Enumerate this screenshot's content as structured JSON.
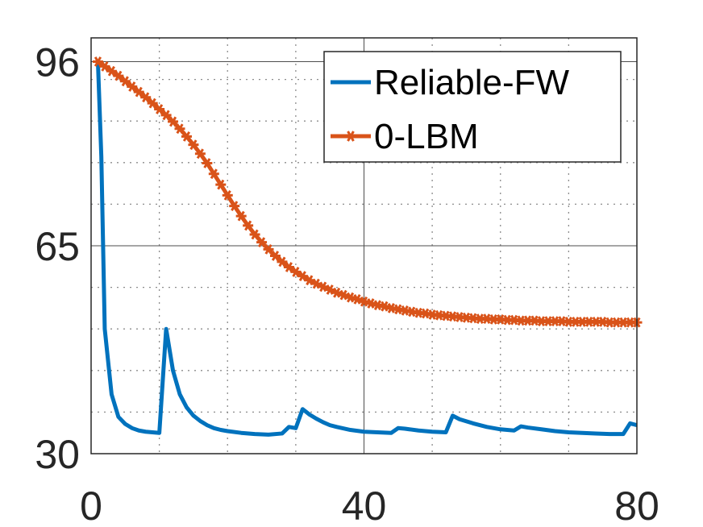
{
  "chart_data": {
    "type": "line",
    "title": "",
    "xlabel": "",
    "ylabel": "",
    "xlim": [
      0,
      80
    ],
    "ylim": [
      30,
      100
    ],
    "xticks": [
      {
        "value": 0,
        "label": "0"
      },
      {
        "value": 40,
        "label": "40"
      },
      {
        "value": 80,
        "label": "80"
      }
    ],
    "yticks": [
      {
        "value": 30,
        "label": "30"
      },
      {
        "value": 65,
        "label": "65"
      },
      {
        "value": 96,
        "label": "96"
      }
    ],
    "minor_grid_x": [
      10,
      20,
      30,
      50,
      60,
      70
    ],
    "minor_grid_y": [
      37,
      44,
      51,
      58,
      72,
      79,
      86,
      93
    ],
    "grid": true,
    "legend_position": "top-right",
    "series": [
      {
        "name": "Reliable-FW",
        "color": "#0072BD",
        "marker": "none",
        "x": [
          1,
          1.5,
          2,
          3,
          4,
          5,
          6,
          7,
          8,
          9,
          10,
          11,
          12,
          13,
          14,
          15,
          16,
          17,
          18,
          19,
          20,
          22,
          24,
          26,
          28,
          29,
          30,
          31,
          32,
          33,
          34,
          35,
          36,
          38,
          40,
          42,
          44,
          45,
          46,
          48,
          50,
          52,
          53,
          54,
          56,
          58,
          60,
          62,
          63,
          64,
          66,
          68,
          70,
          72,
          74,
          76,
          78,
          79,
          80
        ],
        "y": [
          96,
          80,
          51,
          40,
          36.2,
          35,
          34.3,
          33.9,
          33.7,
          33.6,
          33.5,
          51,
          44,
          40,
          37.8,
          36.4,
          35.5,
          34.8,
          34.3,
          34,
          33.8,
          33.5,
          33.3,
          33.2,
          33.4,
          34.5,
          34.3,
          37.5,
          36.6,
          35.9,
          35.3,
          34.8,
          34.5,
          34,
          33.7,
          33.6,
          33.5,
          34.3,
          34.2,
          33.9,
          33.7,
          33.6,
          36.4,
          35.8,
          35.1,
          34.5,
          34.1,
          33.9,
          34.6,
          34.4,
          34.1,
          33.8,
          33.6,
          33.5,
          33.4,
          33.3,
          33.3,
          35.1,
          34.8
        ]
      },
      {
        "name": "0-LBM",
        "color": "#D95319",
        "marker": "*",
        "x": [
          1,
          2,
          3,
          4,
          5,
          6,
          7,
          8,
          9,
          10,
          11,
          12,
          13,
          14,
          15,
          16,
          17,
          18,
          19,
          20,
          21,
          22,
          23,
          24,
          25,
          26,
          27,
          28,
          29,
          30,
          31,
          32,
          33,
          34,
          35,
          36,
          37,
          38,
          39,
          40,
          41,
          42,
          43,
          44,
          45,
          46,
          47,
          48,
          49,
          50,
          51,
          52,
          53,
          54,
          55,
          56,
          57,
          58,
          59,
          60,
          61,
          62,
          63,
          64,
          65,
          66,
          67,
          68,
          69,
          70,
          71,
          72,
          73,
          74,
          75,
          76,
          77,
          78,
          79,
          80
        ],
        "y": [
          96,
          95.2,
          94.4,
          93.6,
          92.7,
          91.8,
          90.9,
          90,
          89,
          88,
          87,
          85.9,
          84.7,
          83.4,
          82,
          80.5,
          78.9,
          77.1,
          75.3,
          73.5,
          71.7,
          70,
          68.4,
          66.9,
          65.6,
          64.4,
          63.3,
          62.3,
          61.4,
          60.6,
          59.9,
          59.2,
          58.6,
          58.1,
          57.6,
          57.1,
          56.7,
          56.3,
          56,
          55.6,
          55.3,
          55,
          54.8,
          54.5,
          54.3,
          54.1,
          53.9,
          53.7,
          53.6,
          53.4,
          53.3,
          53.2,
          53.1,
          53,
          52.9,
          52.8,
          52.7,
          52.7,
          52.6,
          52.6,
          52.5,
          52.5,
          52.4,
          52.4,
          52.4,
          52.3,
          52.3,
          52.3,
          52.3,
          52.2,
          52.2,
          52.2,
          52.2,
          52.2,
          52.2,
          52.1,
          52.1,
          52.1,
          52.1,
          52.1
        ]
      }
    ]
  }
}
